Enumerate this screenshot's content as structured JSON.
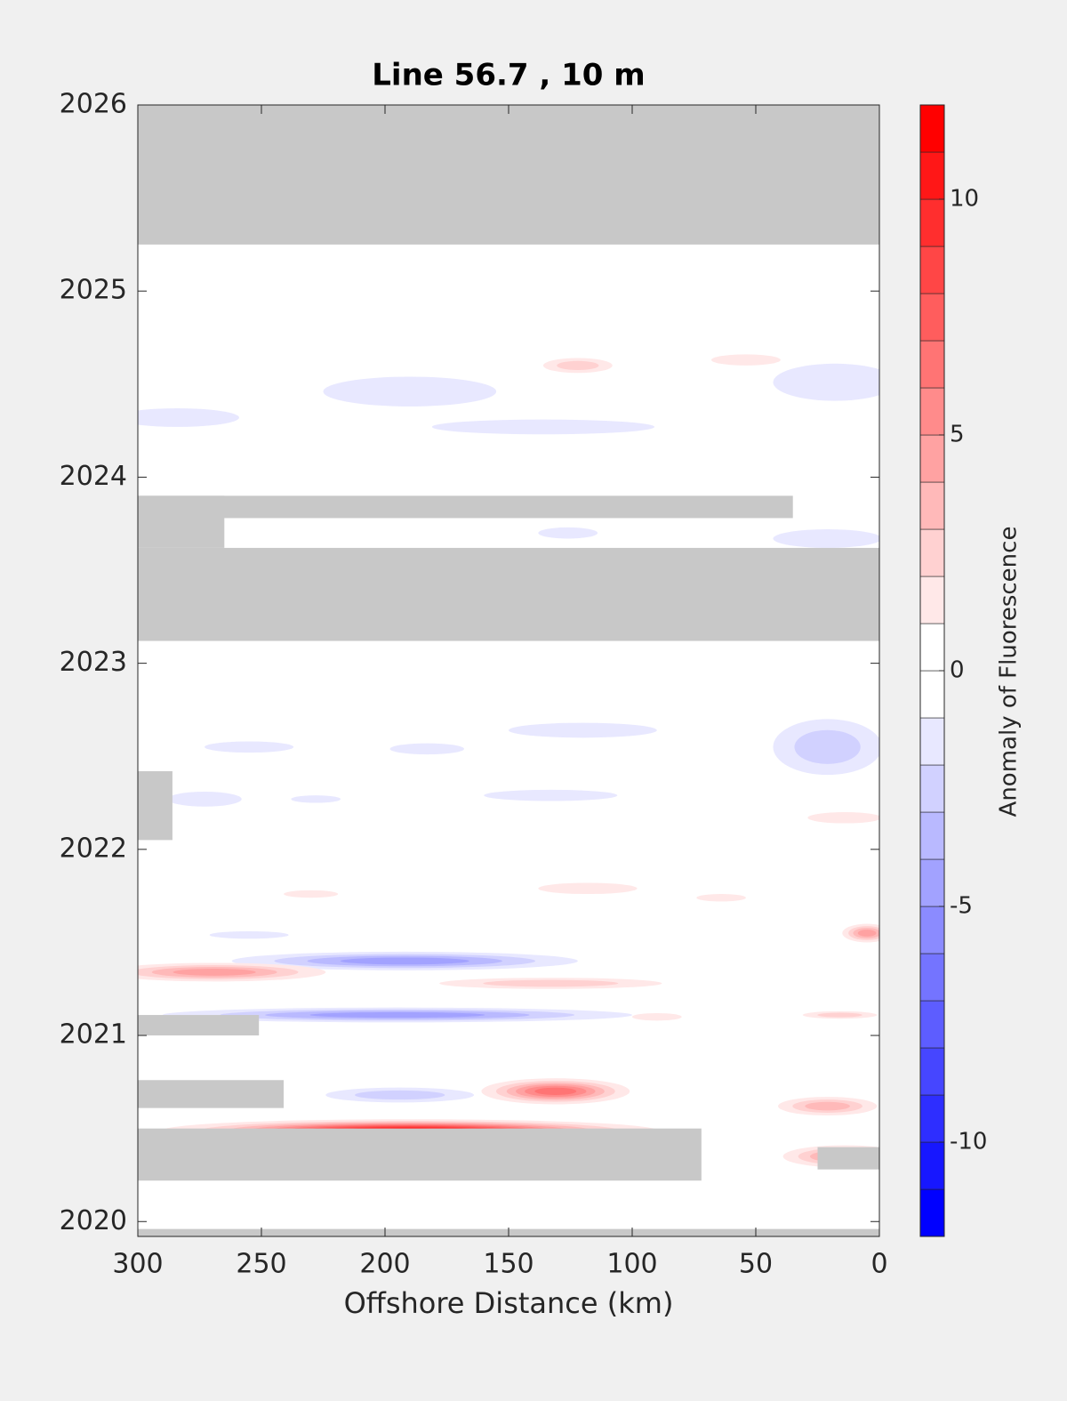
{
  "chart_data": {
    "type": "contour",
    "title": "Line 56.7 , 10 m",
    "xlabel": "Offshore Distance (km)",
    "colorbar_label": "Anomaly of Fluorescence",
    "xlim": [
      300,
      0
    ],
    "xticks": [
      300,
      250,
      200,
      150,
      100,
      50,
      0
    ],
    "ylim": [
      2019.92,
      2026
    ],
    "yticks": [
      2020,
      2021,
      2022,
      2023,
      2024,
      2025,
      2026
    ],
    "clim": [
      -12,
      12
    ],
    "cticks": [
      -10,
      -5,
      0,
      5,
      10
    ],
    "levels": [
      -12,
      -11,
      -10,
      -9,
      -8,
      -7,
      -6,
      -5,
      -4,
      -3,
      -2,
      -1,
      0,
      1,
      2,
      3,
      4,
      5,
      6,
      7,
      8,
      9,
      10,
      11,
      12
    ],
    "missing_color": "#c8c8c8",
    "missing": [
      {
        "x": [
          0,
          300
        ],
        "y": [
          2025.25,
          2026
        ]
      },
      {
        "x": [
          0,
          300
        ],
        "y": [
          2023.12,
          2023.62
        ]
      },
      {
        "x": [
          35,
          300
        ],
        "y": [
          2023.78,
          2023.9
        ]
      },
      {
        "x": [
          265,
          300
        ],
        "y": [
          2023.62,
          2023.9
        ]
      },
      {
        "x": [
          286,
          300
        ],
        "y": [
          2022.05,
          2022.42
        ]
      },
      {
        "x": [
          251,
          300
        ],
        "y": [
          2021.0,
          2021.11
        ]
      },
      {
        "x": [
          241,
          300
        ],
        "y": [
          2020.61,
          2020.76
        ]
      },
      {
        "x": [
          72,
          300
        ],
        "y": [
          2020.22,
          2020.5
        ]
      },
      {
        "x": [
          0,
          25
        ],
        "y": [
          2020.28,
          2020.4
        ]
      },
      {
        "x": [
          0,
          300
        ],
        "y": [
          2019.92,
          2019.96
        ]
      }
    ],
    "anomalies": [
      {
        "x": 190,
        "y": 2020.49,
        "dx": 100,
        "dy": 0.06,
        "value": 11
      },
      {
        "x": 131,
        "y": 2020.7,
        "dx": 30,
        "dy": 0.07,
        "value": 7
      },
      {
        "x": 195,
        "y": 2021.11,
        "dx": 95,
        "dy": 0.04,
        "value": -5
      },
      {
        "x": 192,
        "y": 2021.4,
        "dx": 70,
        "dy": 0.05,
        "value": -5
      },
      {
        "x": 269,
        "y": 2021.34,
        "dx": 45,
        "dy": 0.05,
        "value": 5
      },
      {
        "x": 133,
        "y": 2021.28,
        "dx": 45,
        "dy": 0.03,
        "value": 3
      },
      {
        "x": 194,
        "y": 2020.68,
        "dx": 30,
        "dy": 0.04,
        "value": -3
      },
      {
        "x": 5,
        "y": 2021.55,
        "dx": 10,
        "dy": 0.05,
        "value": 5
      },
      {
        "x": 21,
        "y": 2020.62,
        "dx": 20,
        "dy": 0.05,
        "value": 4
      },
      {
        "x": 14,
        "y": 2020.35,
        "dx": 25,
        "dy": 0.06,
        "value": 5
      },
      {
        "x": 190,
        "y": 2024.46,
        "dx": 35,
        "dy": 0.08,
        "value": -2
      },
      {
        "x": 136,
        "y": 2024.27,
        "dx": 45,
        "dy": 0.04,
        "value": -2
      },
      {
        "x": 284,
        "y": 2024.32,
        "dx": 25,
        "dy": 0.05,
        "value": -2
      },
      {
        "x": 18,
        "y": 2024.51,
        "dx": 25,
        "dy": 0.1,
        "value": -2
      },
      {
        "x": 122,
        "y": 2024.6,
        "dx": 14,
        "dy": 0.04,
        "value": 3
      },
      {
        "x": 54,
        "y": 2024.63,
        "dx": 14,
        "dy": 0.03,
        "value": 2
      },
      {
        "x": 126,
        "y": 2023.7,
        "dx": 12,
        "dy": 0.03,
        "value": -2
      },
      {
        "x": 21,
        "y": 2023.67,
        "dx": 22,
        "dy": 0.05,
        "value": -2
      },
      {
        "x": 120,
        "y": 2022.64,
        "dx": 30,
        "dy": 0.04,
        "value": -2
      },
      {
        "x": 183,
        "y": 2022.54,
        "dx": 15,
        "dy": 0.03,
        "value": -2
      },
      {
        "x": 255,
        "y": 2022.55,
        "dx": 18,
        "dy": 0.03,
        "value": -2
      },
      {
        "x": 133,
        "y": 2022.29,
        "dx": 27,
        "dy": 0.03,
        "value": -2
      },
      {
        "x": 21,
        "y": 2022.55,
        "dx": 22,
        "dy": 0.15,
        "value": -3
      },
      {
        "x": 273,
        "y": 2022.27,
        "dx": 15,
        "dy": 0.04,
        "value": -2
      },
      {
        "x": 228,
        "y": 2022.27,
        "dx": 10,
        "dy": 0.02,
        "value": -2
      },
      {
        "x": 118,
        "y": 2021.79,
        "dx": 20,
        "dy": 0.03,
        "value": 2
      },
      {
        "x": 230,
        "y": 2021.76,
        "dx": 11,
        "dy": 0.02,
        "value": 2
      },
      {
        "x": 64,
        "y": 2021.74,
        "dx": 10,
        "dy": 0.02,
        "value": 2
      },
      {
        "x": 14,
        "y": 2022.17,
        "dx": 15,
        "dy": 0.03,
        "value": 2
      },
      {
        "x": 255,
        "y": 2021.54,
        "dx": 16,
        "dy": 0.02,
        "value": -2
      },
      {
        "x": 16,
        "y": 2021.11,
        "dx": 15,
        "dy": 0.02,
        "value": 3
      },
      {
        "x": 90,
        "y": 2021.1,
        "dx": 10,
        "dy": 0.02,
        "value": 2
      }
    ]
  }
}
